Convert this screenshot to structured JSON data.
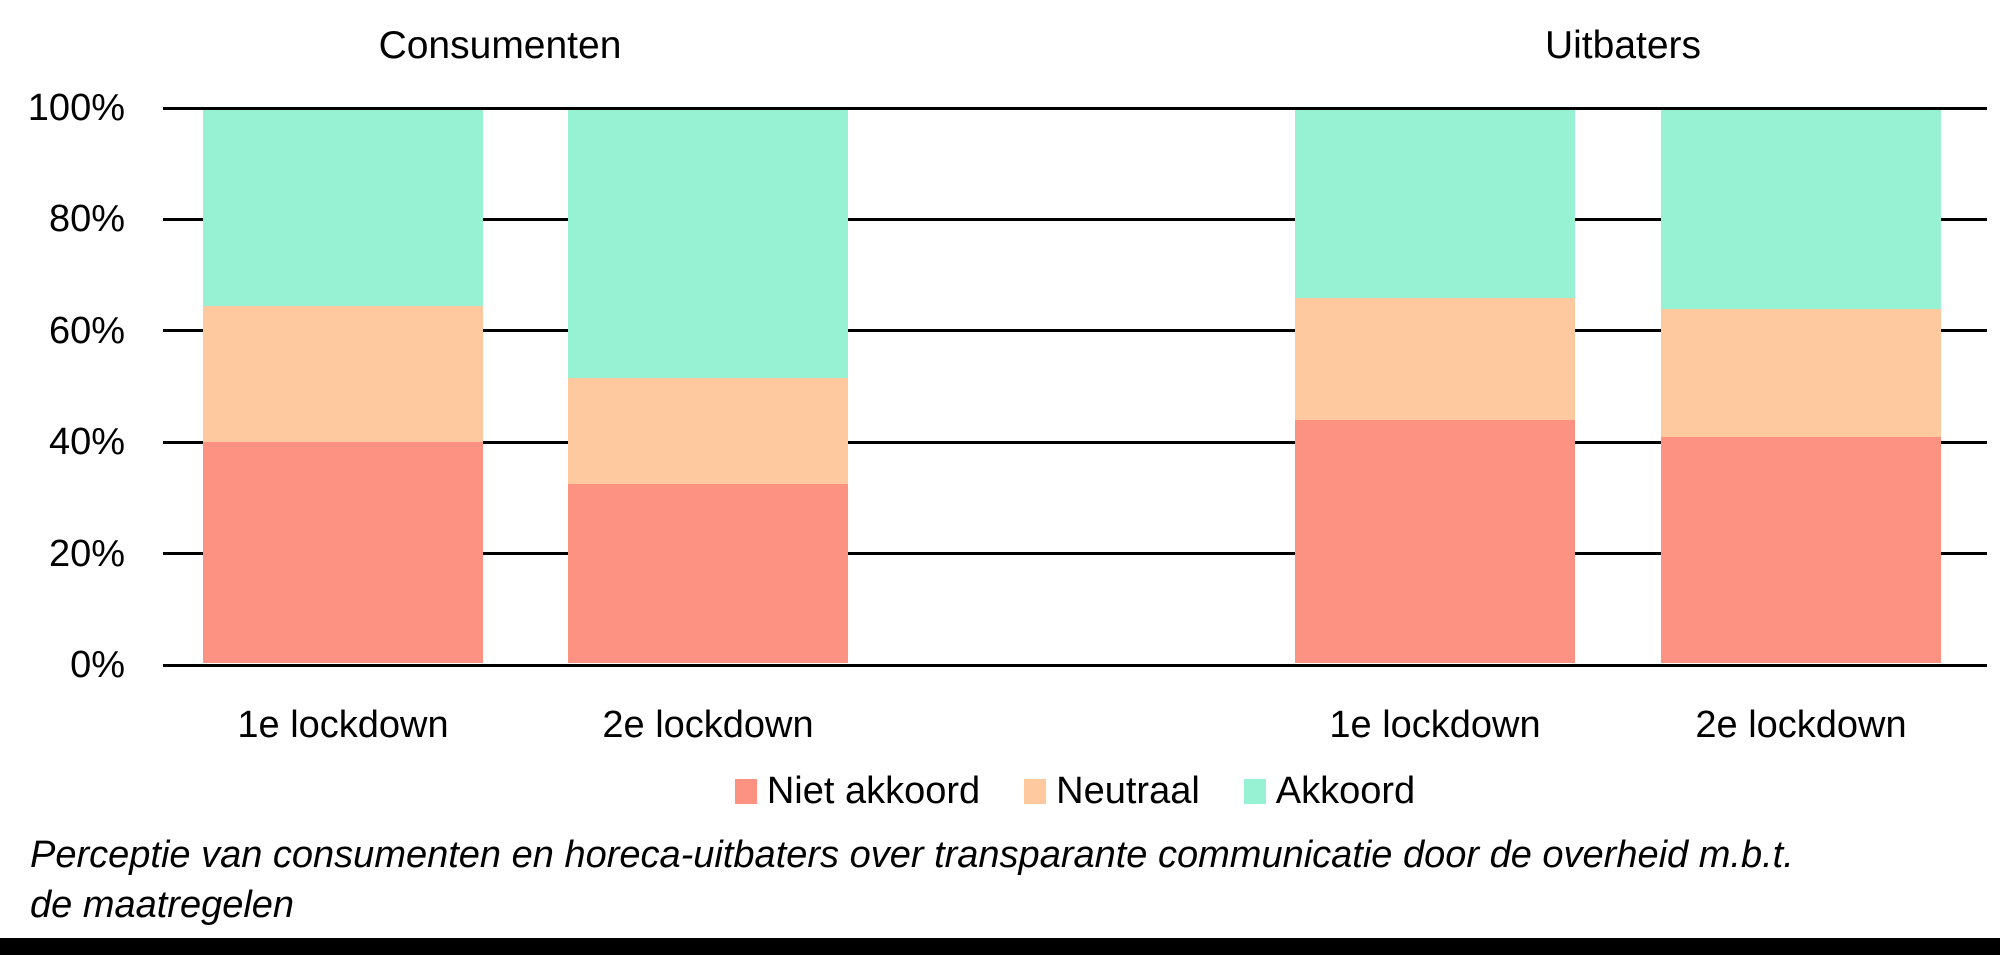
{
  "chart_data": {
    "type": "bar",
    "variant": "100-percent-stacked-columns",
    "groups": [
      {
        "title": "Consumenten",
        "categories": [
          "1e lockdown",
          "2e lockdown"
        ]
      },
      {
        "title": "Uitbaters",
        "categories": [
          "1e lockdown",
          "2e lockdown"
        ]
      }
    ],
    "columns": [
      "Consumenten 1e lockdown",
      "Consumenten 2e lockdown",
      "Uitbaters 1e lockdown",
      "Uitbaters 2e lockdown"
    ],
    "series": [
      {
        "name": "Niet akkoord",
        "color": "#FD9282",
        "values": [
          40.0,
          32.5,
          44.0,
          41.0
        ]
      },
      {
        "name": "Neutraal",
        "color": "#FFC9A0",
        "values": [
          24.5,
          19.0,
          22.0,
          23.0
        ]
      },
      {
        "name": "Akkoord",
        "color": "#96F2D3",
        "values": [
          35.5,
          48.5,
          34.0,
          36.0
        ]
      }
    ],
    "y_axis": {
      "min": 0,
      "max": 100,
      "unit": "%",
      "tick_step": 20,
      "tick_labels": [
        "0%",
        "20%",
        "40%",
        "60%",
        "80%",
        "100%"
      ],
      "grid": true,
      "grid_color": "#000000"
    },
    "legend": {
      "position": "bottom",
      "entries": [
        "Niet akkoord",
        "Neutraal",
        "Akkoord"
      ]
    },
    "caption_line1": "Perceptie van consumenten en horeca-uitbaters over transparante communicatie door de overheid m.b.t.",
    "caption_line2": "de maatregelen",
    "colors": {
      "niet_akkoord": "#FD9282",
      "neutraal": "#FFC9A0",
      "akkoord": "#96F2D3",
      "gridline": "#000000",
      "bottom_bar": "#000000",
      "text": "#000000",
      "background": "#FFFFFF"
    }
  }
}
